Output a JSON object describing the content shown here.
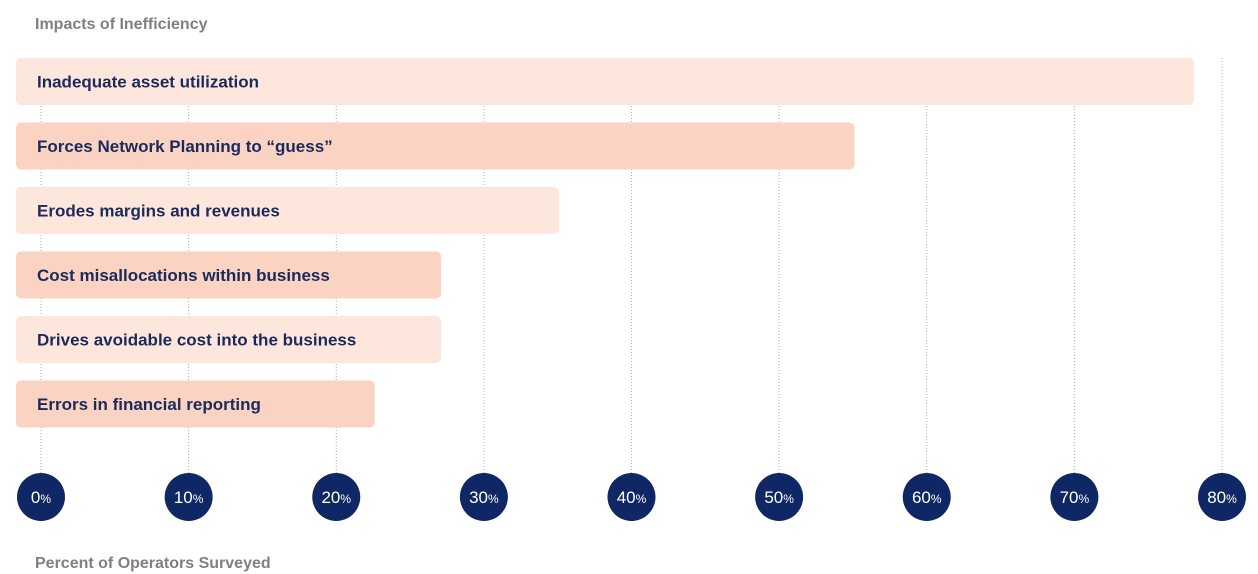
{
  "chart_data": {
    "type": "bar",
    "orientation": "horizontal",
    "title": "",
    "ylabel": "Impacts of Inefficiency",
    "xlabel": "Percent of Operators Surveyed",
    "categories": [
      "Inadequate asset utilization",
      "Forces Network Planning to “guess”",
      "Erodes margins and revenues",
      "Cost misallocations within business",
      "Drives avoidable cost into the business",
      "Errors in financial reporting"
    ],
    "values": [
      80,
      57,
      37,
      29,
      29,
      24.5
    ],
    "xlim": [
      0,
      80
    ],
    "xticks": [
      "0",
      "10",
      "20",
      "30",
      "40",
      "50",
      "60",
      "70",
      "80"
    ],
    "tick_suffix": "%",
    "grid": true,
    "colors": {
      "bar_light": "#fde6dc",
      "bar_dark": "#fbd3c2",
      "text": "#1a2a5c",
      "tick_circle": "#102766",
      "grid": "#aaaaaa",
      "axis_label": "#808080"
    }
  }
}
